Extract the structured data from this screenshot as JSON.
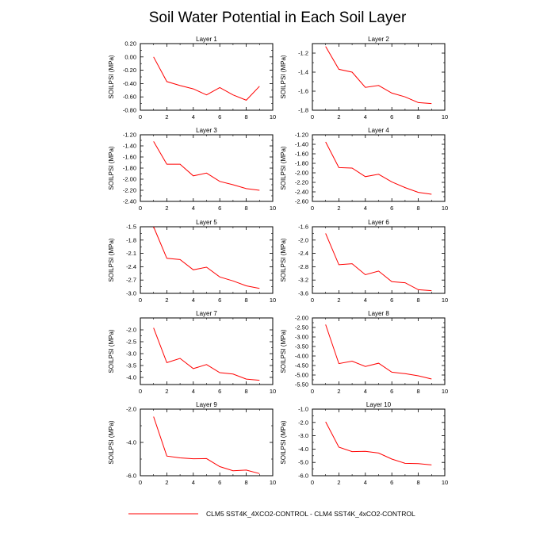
{
  "figure": {
    "title": "Soil Water Potential in Each Soil Layer",
    "legend_label": "CLM5 SST4K_4XCO2-CONTROL - CLM4 SST4K_4xCO2-CONTROL",
    "series_color": "#ff0000"
  },
  "chart_data": [
    {
      "type": "line",
      "title": "Layer 1",
      "ylabel": "SOILPSI  (MPa)",
      "xlim": [
        0,
        10
      ],
      "x_ticks": [
        "0",
        "2",
        "4",
        "6",
        "8",
        "10"
      ],
      "ylim": [
        -0.8,
        0.2
      ],
      "y_ticks": [
        "0.20",
        "0.00",
        "-0.20",
        "-0.40",
        "-0.60",
        "-0.80"
      ],
      "series": [
        {
          "name": "CLM5 SST4K_4XCO2-CONTROL - CLM4 SST4K_4xCO2-CONTROL",
          "x": [
            1,
            2,
            3,
            4,
            5,
            6,
            7,
            8,
            9
          ],
          "values": [
            0.0,
            -0.37,
            -0.43,
            -0.48,
            -0.57,
            -0.46,
            -0.57,
            -0.65,
            -0.44
          ]
        }
      ]
    },
    {
      "type": "line",
      "title": "Layer 2",
      "ylabel": "SOILPSI  (MPa)",
      "xlim": [
        0,
        10
      ],
      "x_ticks": [
        "0",
        "2",
        "4",
        "6",
        "8",
        "10"
      ],
      "ylim": [
        -1.8,
        -1.1
      ],
      "y_ticks": [
        "-1.2",
        "-1.4",
        "-1.6",
        "-1.8"
      ],
      "series": [
        {
          "name": "CLM5 SST4K_4XCO2-CONTROL - CLM4 SST4K_4xCO2-CONTROL",
          "x": [
            1,
            2,
            3,
            4,
            5,
            6,
            7,
            8,
            9
          ],
          "values": [
            -1.13,
            -1.37,
            -1.4,
            -1.56,
            -1.54,
            -1.62,
            -1.66,
            -1.72,
            -1.73
          ]
        }
      ]
    },
    {
      "type": "line",
      "title": "Layer 3",
      "ylabel": "SOILPSI  (MPa)",
      "xlim": [
        0,
        10
      ],
      "x_ticks": [
        "0",
        "2",
        "4",
        "6",
        "8",
        "10"
      ],
      "ylim": [
        -2.4,
        -1.2
      ],
      "y_ticks": [
        "-1.20",
        "-1.40",
        "-1.60",
        "-1.80",
        "-2.00",
        "-2.20",
        "-2.40"
      ],
      "series": [
        {
          "name": "CLM5 SST4K_4XCO2-CONTROL - CLM4 SST4K_4xCO2-CONTROL",
          "x": [
            1,
            2,
            3,
            4,
            5,
            6,
            7,
            8,
            9
          ],
          "values": [
            -1.32,
            -1.73,
            -1.73,
            -1.94,
            -1.89,
            -2.04,
            -2.1,
            -2.17,
            -2.2
          ]
        }
      ]
    },
    {
      "type": "line",
      "title": "Layer 4",
      "ylabel": "SOILPSI  (MPa)",
      "xlim": [
        0,
        10
      ],
      "x_ticks": [
        "0",
        "2",
        "4",
        "6",
        "8",
        "10"
      ],
      "ylim": [
        -2.6,
        -1.2
      ],
      "y_ticks": [
        "-1.20",
        "-1.40",
        "-1.60",
        "-1.80",
        "-2.00",
        "-2.20",
        "-2.40",
        "-2.60"
      ],
      "series": [
        {
          "name": "CLM5 SST4K_4XCO2-CONTROL - CLM4 SST4K_4xCO2-CONTROL",
          "x": [
            1,
            2,
            3,
            4,
            5,
            6,
            7,
            8,
            9
          ],
          "values": [
            -1.35,
            -1.89,
            -1.9,
            -2.08,
            -2.03,
            -2.19,
            -2.31,
            -2.41,
            -2.45
          ]
        }
      ]
    },
    {
      "type": "line",
      "title": "Layer 5",
      "ylabel": "SOILPSI  (MPa)",
      "xlim": [
        0,
        10
      ],
      "x_ticks": [
        "0",
        "2",
        "4",
        "6",
        "8",
        "10"
      ],
      "ylim": [
        -3.0,
        -1.5
      ],
      "y_ticks": [
        "-1.5",
        "-1.8",
        "-2.1",
        "-2.4",
        "-2.7",
        "-3.0"
      ],
      "series": [
        {
          "name": "CLM5 SST4K_4XCO2-CONTROL - CLM4 SST4K_4xCO2-CONTROL",
          "x": [
            1,
            2,
            3,
            4,
            5,
            6,
            7,
            8,
            9
          ],
          "values": [
            -1.5,
            -2.21,
            -2.24,
            -2.47,
            -2.41,
            -2.63,
            -2.72,
            -2.83,
            -2.89
          ]
        }
      ]
    },
    {
      "type": "line",
      "title": "Layer 6",
      "ylabel": "SOILPSI  (MPa)",
      "xlim": [
        0,
        10
      ],
      "x_ticks": [
        "0",
        "2",
        "4",
        "6",
        "8",
        "10"
      ],
      "ylim": [
        -3.6,
        -1.6
      ],
      "y_ticks": [
        "-1.6",
        "-2.0",
        "-2.4",
        "-2.8",
        "-3.2",
        "-3.6"
      ],
      "series": [
        {
          "name": "CLM5 SST4K_4XCO2-CONTROL - CLM4 SST4K_4xCO2-CONTROL",
          "x": [
            1,
            2,
            3,
            4,
            5,
            6,
            7,
            8,
            9
          ],
          "values": [
            -1.8,
            -2.74,
            -2.71,
            -3.04,
            -2.93,
            -3.25,
            -3.28,
            -3.49,
            -3.52
          ]
        }
      ]
    },
    {
      "type": "line",
      "title": "Layer 7",
      "ylabel": "SOILPSI  (MPa)",
      "xlim": [
        0,
        10
      ],
      "x_ticks": [
        "0",
        "2",
        "4",
        "6",
        "8",
        "10"
      ],
      "ylim": [
        -4.3,
        -1.5
      ],
      "y_ticks": [
        "-2.0",
        "-2.5",
        "-3.0",
        "-3.5",
        "-4.0"
      ],
      "series": [
        {
          "name": "CLM5 SST4K_4XCO2-CONTROL - CLM4 SST4K_4xCO2-CONTROL",
          "x": [
            1,
            2,
            3,
            4,
            5,
            6,
            7,
            8,
            9
          ],
          "values": [
            -1.92,
            -3.38,
            -3.2,
            -3.63,
            -3.46,
            -3.8,
            -3.86,
            -4.07,
            -4.12
          ]
        }
      ]
    },
    {
      "type": "line",
      "title": "Layer 8",
      "ylabel": "SOILPSI  (MPa)",
      "xlim": [
        0,
        10
      ],
      "x_ticks": [
        "0",
        "2",
        "4",
        "6",
        "8",
        "10"
      ],
      "ylim": [
        -5.5,
        -2.0
      ],
      "y_ticks": [
        "-2.00",
        "-2.50",
        "-3.00",
        "-3.50",
        "-4.00",
        "-4.50",
        "-5.00",
        "-5.50"
      ],
      "series": [
        {
          "name": "CLM5 SST4K_4XCO2-CONTROL - CLM4 SST4K_4xCO2-CONTROL",
          "x": [
            1,
            2,
            3,
            4,
            5,
            6,
            7,
            8,
            9
          ],
          "values": [
            -2.35,
            -4.4,
            -4.27,
            -4.55,
            -4.38,
            -4.85,
            -4.93,
            -5.04,
            -5.21
          ]
        }
      ]
    },
    {
      "type": "line",
      "title": "Layer 9",
      "ylabel": "SOILPSI  (MPa)",
      "xlim": [
        0,
        10
      ],
      "x_ticks": [
        "0",
        "2",
        "4",
        "6",
        "8",
        "10"
      ],
      "ylim": [
        -6.0,
        -2.0
      ],
      "y_ticks": [
        "-2.0",
        "-4.0",
        "-6.0"
      ],
      "series": [
        {
          "name": "CLM5 SST4K_4XCO2-CONTROL - CLM4 SST4K_4xCO2-CONTROL",
          "x": [
            1,
            2,
            3,
            4,
            5,
            6,
            7,
            8,
            9
          ],
          "values": [
            -2.45,
            -4.82,
            -4.93,
            -4.98,
            -4.97,
            -5.45,
            -5.7,
            -5.66,
            -5.87
          ]
        }
      ]
    },
    {
      "type": "line",
      "title": "Layer 10",
      "ylabel": "SOILPSI  (MPa)",
      "xlim": [
        0,
        10
      ],
      "x_ticks": [
        "0",
        "2",
        "4",
        "6",
        "8",
        "10"
      ],
      "ylim": [
        -6.0,
        -1.0
      ],
      "y_ticks": [
        "-1.0",
        "-2.0",
        "-3.0",
        "-4.0",
        "-5.0",
        "-6.0"
      ],
      "series": [
        {
          "name": "CLM5 SST4K_4XCO2-CONTROL - CLM4 SST4K_4xCO2-CONTROL",
          "x": [
            1,
            2,
            3,
            4,
            5,
            6,
            7,
            8,
            9
          ],
          "values": [
            -1.95,
            -3.86,
            -4.19,
            -4.17,
            -4.3,
            -4.75,
            -5.07,
            -5.09,
            -5.19
          ]
        }
      ]
    }
  ]
}
